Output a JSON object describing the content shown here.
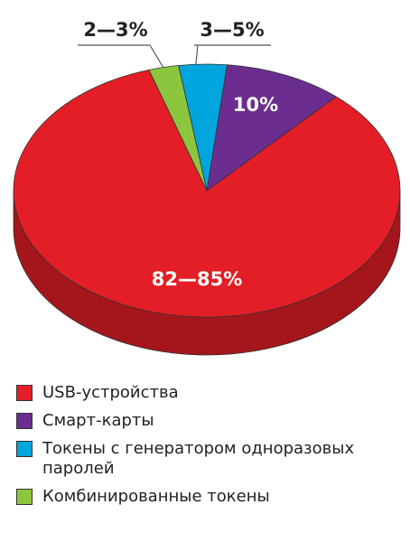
{
  "chart_data": {
    "type": "pie",
    "categories": [
      "USB-устройства",
      "Смарт-карты",
      "Токены с генератором одноразовых паролей",
      "Комбинированные токены"
    ],
    "values": [
      83.5,
      10,
      4,
      2.5
    ],
    "value_labels": [
      "82—85%",
      "10%",
      "3—5%",
      "2—3%"
    ],
    "colors": [
      "#e41e26",
      "#6b2d8f",
      "#00a5de",
      "#8cc63f"
    ]
  }
}
